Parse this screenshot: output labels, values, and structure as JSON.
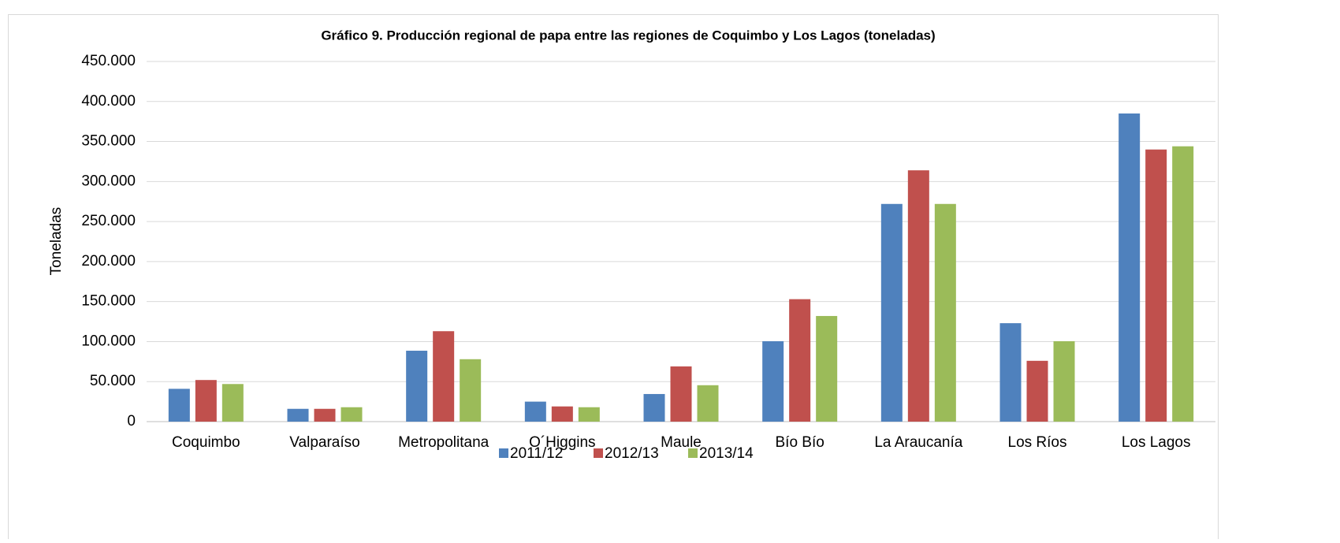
{
  "chart_data": {
    "type": "bar",
    "title": "Gráfico 9. Producción regional de papa entre las regiones de Coquimbo y Los Lagos (toneladas)",
    "y_label": "Toneladas",
    "categories": [
      "Coquimbo",
      "Valparaíso",
      "Metropolitana",
      "O´Higgins",
      "Maule",
      "Bío Bío",
      "La Araucanía",
      "Los Ríos",
      "Los Lagos"
    ],
    "series": [
      {
        "name": "2011/12",
        "color": "#4f81bd",
        "values": [
          41000,
          16000,
          88600,
          25000,
          34500,
          100500,
          272000,
          123000,
          385000
        ]
      },
      {
        "name": "2012/13",
        "color": "#c0504d",
        "values": [
          52000,
          16000,
          113000,
          19000,
          69000,
          153000,
          314000,
          76000,
          340000
        ]
      },
      {
        "name": "2013/14",
        "color": "#9bbb59",
        "values": [
          47000,
          18000,
          78000,
          18000,
          45500,
          132000,
          272000,
          100500,
          344000
        ]
      }
    ],
    "ylim": [
      0,
      450000
    ],
    "yticks": [
      0,
      {
        "value": 50000,
        "label": "50.000"
      },
      {
        "value": 100000,
        "label": "100.000"
      },
      {
        "value": 150000,
        "label": "150.000"
      },
      {
        "value": 200000,
        "label": "200.000"
      },
      {
        "value": 250000,
        "label": "250.000"
      },
      {
        "value": 300000,
        "label": "300.000"
      },
      {
        "value": 350000,
        "label": "350.000"
      },
      {
        "value": 400000,
        "label": "400.000"
      },
      {
        "value": 450000,
        "label": "450.000"
      }
    ],
    "grid": true,
    "legend": "bottom"
  }
}
